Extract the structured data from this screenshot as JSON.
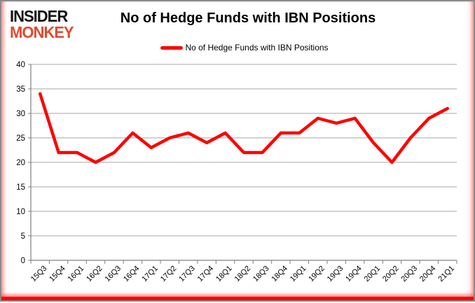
{
  "logo": {
    "line1": "INSIDER",
    "line2": "MONKEY"
  },
  "header": {
    "title": "No of Hedge Funds with IBN Positions"
  },
  "legend": {
    "label": "No of Hedge Funds with IBN Positions",
    "swatch_color": "#fe0000"
  },
  "chart_data": {
    "type": "line",
    "title": "No of Hedge Funds with IBN Positions",
    "series_name": "No of Hedge Funds with IBN Positions",
    "categories": [
      "15Q3",
      "15Q4",
      "16Q1",
      "16Q2",
      "16Q3",
      "16Q4",
      "17Q1",
      "17Q2",
      "17Q3",
      "17Q4",
      "18Q1",
      "18Q2",
      "18Q3",
      "18Q4",
      "19Q1",
      "19Q2",
      "19Q3",
      "19Q4",
      "20Q1",
      "20Q2",
      "20Q3",
      "20Q4",
      "21Q1"
    ],
    "values": [
      34,
      22,
      22,
      20,
      22,
      26,
      23,
      25,
      26,
      24,
      26,
      22,
      22,
      26,
      26,
      29,
      28,
      29,
      24,
      20,
      25,
      29,
      31
    ],
    "ylim": [
      0,
      40
    ],
    "yticks": [
      0,
      5,
      10,
      15,
      20,
      25,
      30,
      35,
      40
    ],
    "xlabel": "",
    "ylabel": "",
    "grid": true,
    "legend_position": "top",
    "line_color": "#fe0000",
    "grid_color": "#a6a6a6",
    "axis_color": "#808080",
    "tick_label_color": "#000000"
  }
}
